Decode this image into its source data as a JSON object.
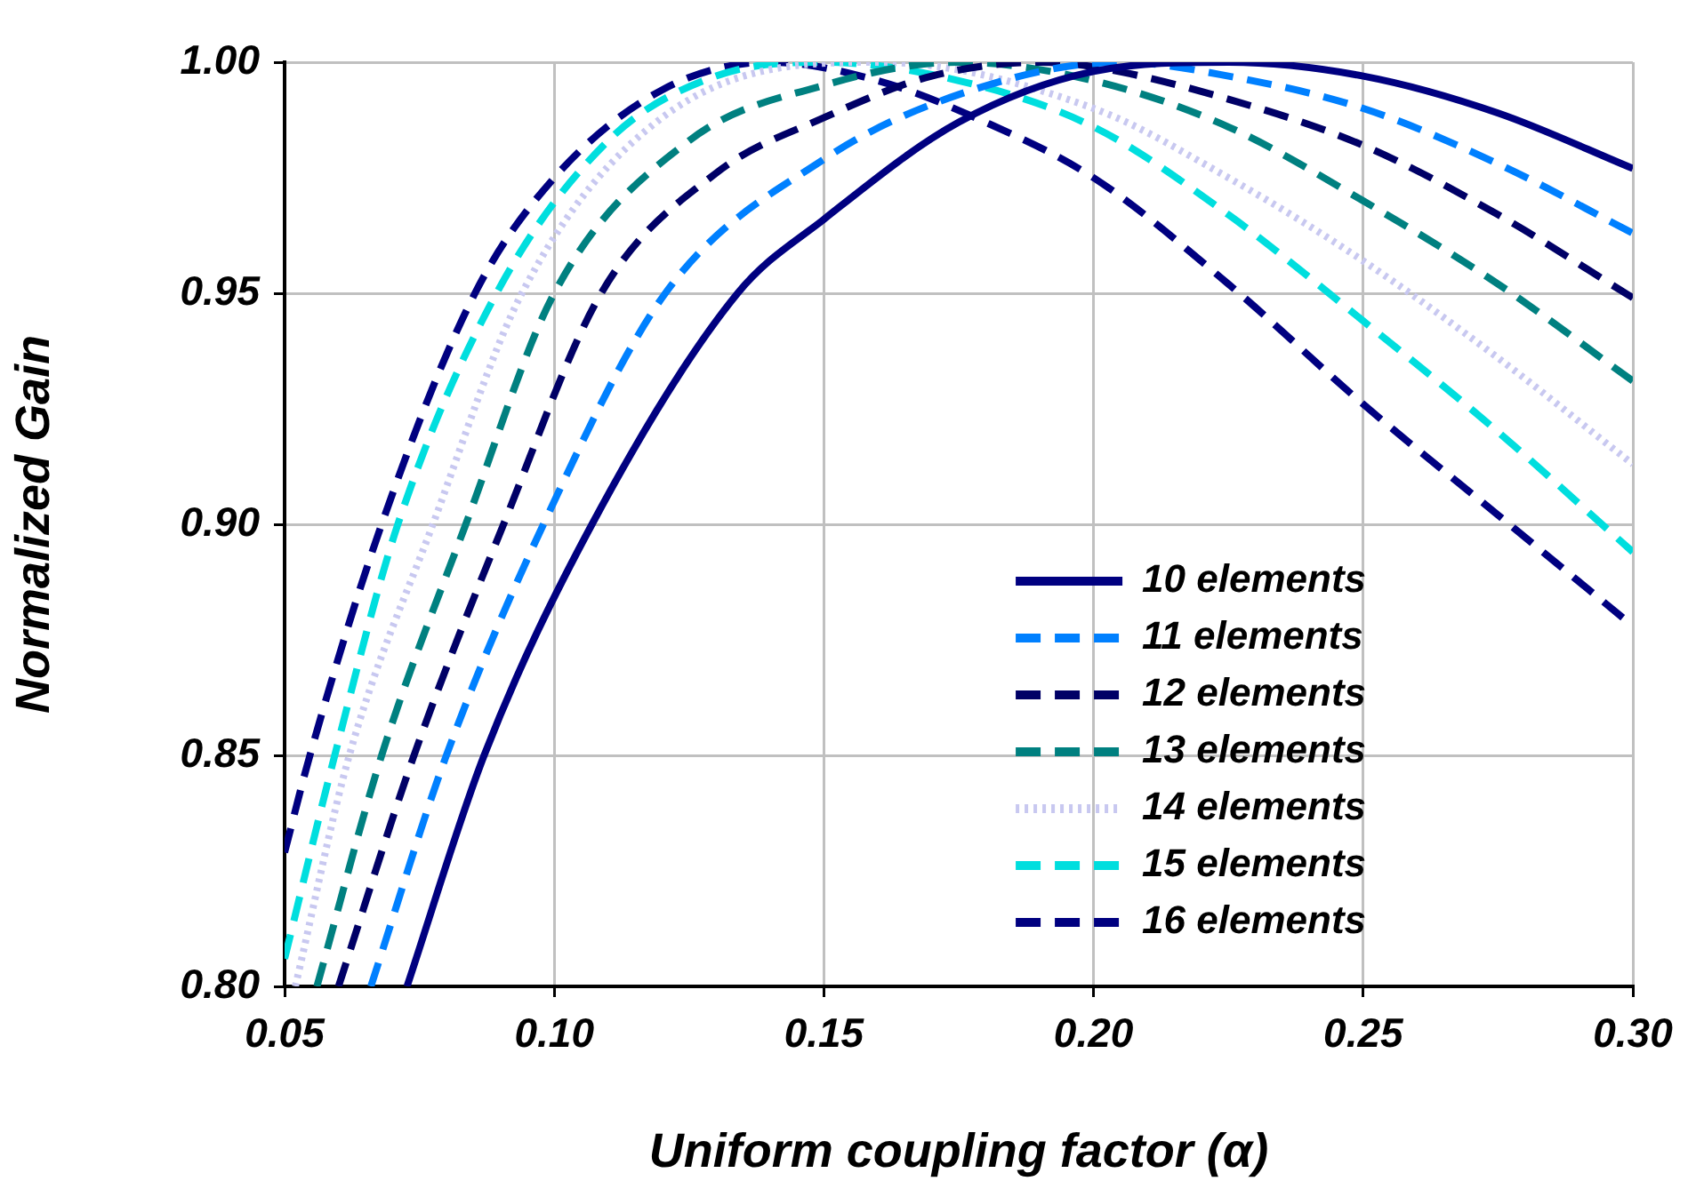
{
  "chart_data": {
    "type": "line",
    "xlabel": "Uniform coupling factor (α)",
    "ylabel": "Normalized Gain",
    "xlim": [
      0.05,
      0.3
    ],
    "xticks": [
      {
        "value": 0.05,
        "label": "0.05"
      },
      {
        "value": 0.1,
        "label": "0.10"
      },
      {
        "value": 0.15,
        "label": "0.15"
      },
      {
        "value": 0.2,
        "label": "0.20"
      },
      {
        "value": 0.25,
        "label": "0.25"
      },
      {
        "value": 0.3,
        "label": "0.30"
      }
    ],
    "ylim": [
      0.8,
      1.0
    ],
    "yticks": [
      {
        "value": 0.8,
        "label": "0.80"
      },
      {
        "value": 0.85,
        "label": "0.85"
      },
      {
        "value": 0.9,
        "label": "0.90"
      },
      {
        "value": 0.95,
        "label": "0.95"
      },
      {
        "value": 1.0,
        "label": "1.00"
      }
    ],
    "grid": true,
    "legend": "bottom right",
    "marker": "none",
    "series": [
      {
        "name": "10 elements",
        "color": "#000080",
        "line_style": "solid",
        "x": [
          0.0727,
          0.087,
          0.107,
          0.134,
          0.15,
          0.175,
          0.2,
          0.225,
          0.25,
          0.275,
          0.3
        ],
        "values": [
          0.8,
          0.85,
          0.9,
          0.95,
          0.966,
          0.987,
          0.998,
          1.0,
          0.997,
          0.989,
          0.977
        ]
      },
      {
        "name": "11 elements",
        "color": "#0080ff",
        "line_style": "dashed",
        "x": [
          0.066,
          0.08,
          0.098,
          0.1206,
          0.15,
          0.175,
          0.205,
          0.225,
          0.25,
          0.275,
          0.3
        ],
        "values": [
          0.8,
          0.85,
          0.9,
          0.95,
          0.979,
          0.993,
          1.0,
          0.997,
          0.99,
          0.978,
          0.963
        ]
      },
      {
        "name": "12 elements",
        "color": "#000066",
        "line_style": "dashed",
        "x": [
          0.06,
          0.074,
          0.0906,
          0.1087,
          0.13,
          0.15,
          0.17,
          0.19,
          0.2,
          0.225,
          0.25,
          0.275,
          0.3
        ],
        "values": [
          0.8,
          0.85,
          0.9,
          0.95,
          0.976,
          0.988,
          0.997,
          1.0,
          0.999,
          0.992,
          0.982,
          0.967,
          0.949
        ]
      },
      {
        "name": "13 elements",
        "color": "#008080",
        "line_style": "dashed",
        "x": [
          0.056,
          0.068,
          0.0836,
          0.1,
          0.125,
          0.15,
          0.175,
          0.2,
          0.225,
          0.25,
          0.275,
          0.3
        ],
        "values": [
          0.8,
          0.85,
          0.9,
          0.95,
          0.983,
          0.995,
          1.0,
          0.996,
          0.986,
          0.97,
          0.952,
          0.931
        ]
      },
      {
        "name": "14 elements",
        "color": "#c8c8f0",
        "line_style": "dotted",
        "x": [
          0.052,
          0.062,
          0.0775,
          0.094,
          0.12,
          0.16,
          0.2,
          0.225,
          0.25,
          0.275,
          0.3
        ],
        "values": [
          0.8,
          0.85,
          0.9,
          0.95,
          0.988,
          1.0,
          0.99,
          0.975,
          0.957,
          0.936,
          0.913
        ]
      },
      {
        "name": "15 elements",
        "color": "#00dede",
        "line_style": "dashed",
        "x": [
          0.05,
          0.0593,
          0.071,
          0.0893,
          0.11,
          0.13,
          0.15,
          0.175,
          0.2,
          0.225,
          0.25,
          0.275,
          0.3
        ],
        "values": [
          0.806,
          0.85,
          0.9,
          0.95,
          0.983,
          0.997,
          1.0,
          0.996,
          0.986,
          0.967,
          0.944,
          0.92,
          0.894
        ]
      },
      {
        "name": "16 elements",
        "color": "#000080",
        "line_style": "dashed",
        "x": [
          0.05,
          0.0547,
          0.068,
          0.0853,
          0.1,
          0.12,
          0.14,
          0.16,
          0.18,
          0.2,
          0.225,
          0.25,
          0.275,
          0.3
        ],
        "values": [
          0.829,
          0.85,
          0.9,
          0.95,
          0.975,
          0.994,
          1.0,
          0.996,
          0.987,
          0.975,
          0.952,
          0.926,
          0.902,
          0.878
        ]
      }
    ]
  }
}
